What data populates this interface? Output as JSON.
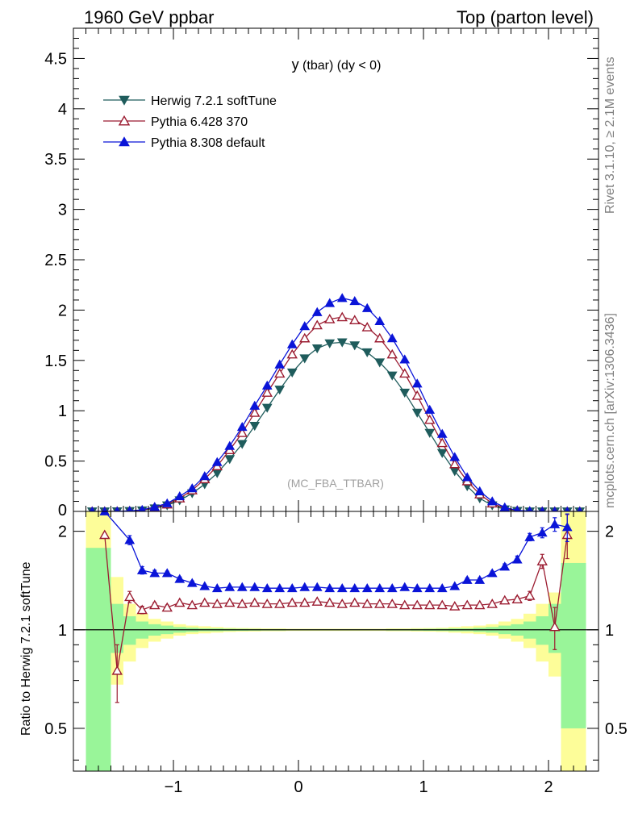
{
  "header": {
    "left": "1960 GeV ppbar",
    "right": "Top (parton level)"
  },
  "side_labels": {
    "rivet": "Rivet 3.1.10, ≥ 2.1M events",
    "source": "mcplots.cern.ch [arXiv:1306.3436]"
  },
  "plot_title": {
    "main": "y",
    "sub": " (tbar) (dy < 0)"
  },
  "watermark": "(MC_FBA_TTBAR)",
  "ratio_ylabel": "Ratio to Herwig 7.2.1 softTune",
  "colors": {
    "herwig": "#1f5c5c",
    "pythia6": "#9b1b30",
    "pythia8": "#0a14d8",
    "band_inner": "#99f599",
    "band_outer": "#fdfd99"
  },
  "chart_data": {
    "type": "line",
    "x": [
      -1.65,
      -1.55,
      -1.45,
      -1.35,
      -1.25,
      -1.15,
      -1.05,
      -0.95,
      -0.85,
      -0.75,
      -0.65,
      -0.55,
      -0.45,
      -0.35,
      -0.25,
      -0.15,
      -0.05,
      0.05,
      0.15,
      0.25,
      0.35,
      0.45,
      0.55,
      0.65,
      0.75,
      0.85,
      0.95,
      1.05,
      1.15,
      1.25,
      1.35,
      1.45,
      1.55,
      1.65,
      1.75,
      1.85,
      1.95,
      2.05,
      2.15,
      2.25
    ],
    "main_panel": {
      "xlim": [
        -1.8,
        2.4
      ],
      "ylim": [
        0,
        4.8
      ],
      "yticks": [
        0.5,
        1,
        1.5,
        2,
        2.5,
        3,
        3.5,
        4,
        4.5
      ],
      "ytick_labels": [
        "0.5",
        "1",
        "1.5",
        "2",
        "2.5",
        "3",
        "3.5",
        "4",
        "4.5"
      ],
      "legend_position": "top-left",
      "series": [
        {
          "name": "Herwig 7.2.1 softTune",
          "marker": "triangle-down-filled",
          "values": [
            0.0,
            0.0,
            0.001,
            0.004,
            0.01,
            0.03,
            0.06,
            0.11,
            0.18,
            0.27,
            0.38,
            0.52,
            0.67,
            0.85,
            1.03,
            1.21,
            1.38,
            1.52,
            1.62,
            1.67,
            1.68,
            1.65,
            1.58,
            1.48,
            1.35,
            1.18,
            0.98,
            0.78,
            0.58,
            0.4,
            0.25,
            0.13,
            0.06,
            0.02,
            0.005,
            0.0,
            0.0,
            0.0,
            0.0,
            0.0
          ]
        },
        {
          "name": "Pythia 6.428 370",
          "marker": "triangle-up-open",
          "values": [
            0.0,
            0.0,
            0.001,
            0.005,
            0.01,
            0.04,
            0.07,
            0.13,
            0.21,
            0.32,
            0.45,
            0.61,
            0.78,
            0.98,
            1.18,
            1.37,
            1.56,
            1.72,
            1.85,
            1.91,
            1.93,
            1.9,
            1.83,
            1.72,
            1.56,
            1.37,
            1.15,
            0.91,
            0.68,
            0.47,
            0.3,
            0.17,
            0.08,
            0.03,
            0.01,
            0.0,
            0.0,
            0.0,
            0.0,
            0.0
          ]
        },
        {
          "name": "Pythia 8.308 default",
          "marker": "triangle-up-filled",
          "values": [
            0.0,
            0.0,
            0.001,
            0.006,
            0.015,
            0.045,
            0.08,
            0.15,
            0.23,
            0.35,
            0.49,
            0.65,
            0.84,
            1.05,
            1.25,
            1.46,
            1.66,
            1.84,
            1.98,
            2.07,
            2.12,
            2.09,
            2.02,
            1.89,
            1.72,
            1.51,
            1.27,
            1.01,
            0.77,
            0.54,
            0.34,
            0.2,
            0.1,
            0.04,
            0.01,
            0.004,
            0.0,
            0.0,
            0.0,
            0.0
          ]
        }
      ]
    },
    "ratio_panel": {
      "ylabel": "Ratio to Herwig 7.2.1 softTune",
      "ylim": [
        0.37,
        2.3
      ],
      "yticks": [
        0.5,
        1,
        2
      ],
      "ytick_labels": [
        "0.5",
        "1",
        "2"
      ],
      "xticks": [
        -1,
        0,
        1,
        2
      ],
      "xtick_labels": [
        "−1",
        "0",
        "1",
        "2"
      ],
      "band_inner": [
        [
          0.3,
          1.78
        ],
        [
          0.3,
          1.78
        ],
        [
          0.85,
          1.2
        ],
        [
          0.9,
          1.1
        ],
        [
          0.94,
          1.06
        ],
        [
          0.96,
          1.04
        ],
        [
          0.97,
          1.03
        ],
        [
          0.98,
          1.02
        ],
        [
          0.985,
          1.015
        ],
        [
          0.99,
          1.01
        ],
        [
          0.99,
          1.01
        ],
        [
          0.992,
          1.008
        ],
        [
          0.993,
          1.007
        ],
        [
          0.994,
          1.006
        ],
        [
          0.995,
          1.005
        ],
        [
          0.995,
          1.005
        ],
        [
          0.996,
          1.004
        ],
        [
          0.996,
          1.004
        ],
        [
          0.996,
          1.004
        ],
        [
          0.996,
          1.004
        ],
        [
          0.996,
          1.004
        ],
        [
          0.996,
          1.004
        ],
        [
          0.996,
          1.004
        ],
        [
          0.996,
          1.004
        ],
        [
          0.995,
          1.005
        ],
        [
          0.995,
          1.005
        ],
        [
          0.994,
          1.006
        ],
        [
          0.993,
          1.007
        ],
        [
          0.992,
          1.008
        ],
        [
          0.99,
          1.01
        ],
        [
          0.99,
          1.01
        ],
        [
          0.985,
          1.015
        ],
        [
          0.98,
          1.02
        ],
        [
          0.97,
          1.03
        ],
        [
          0.96,
          1.04
        ],
        [
          0.94,
          1.06
        ],
        [
          0.9,
          1.1
        ],
        [
          0.85,
          1.2
        ],
        [
          0.5,
          1.6
        ],
        [
          0.5,
          1.6
        ]
      ],
      "band_outer": [
        [
          0.3,
          2.3
        ],
        [
          0.3,
          2.3
        ],
        [
          0.68,
          1.45
        ],
        [
          0.8,
          1.2
        ],
        [
          0.88,
          1.12
        ],
        [
          0.92,
          1.08
        ],
        [
          0.94,
          1.06
        ],
        [
          0.96,
          1.04
        ],
        [
          0.97,
          1.03
        ],
        [
          0.975,
          1.025
        ],
        [
          0.98,
          1.02
        ],
        [
          0.985,
          1.015
        ],
        [
          0.987,
          1.013
        ],
        [
          0.988,
          1.012
        ],
        [
          0.99,
          1.01
        ],
        [
          0.99,
          1.01
        ],
        [
          0.992,
          1.008
        ],
        [
          0.992,
          1.008
        ],
        [
          0.992,
          1.008
        ],
        [
          0.992,
          1.008
        ],
        [
          0.992,
          1.008
        ],
        [
          0.992,
          1.008
        ],
        [
          0.992,
          1.008
        ],
        [
          0.992,
          1.008
        ],
        [
          0.99,
          1.01
        ],
        [
          0.99,
          1.01
        ],
        [
          0.988,
          1.012
        ],
        [
          0.987,
          1.013
        ],
        [
          0.985,
          1.015
        ],
        [
          0.98,
          1.02
        ],
        [
          0.975,
          1.025
        ],
        [
          0.97,
          1.03
        ],
        [
          0.96,
          1.04
        ],
        [
          0.94,
          1.06
        ],
        [
          0.92,
          1.08
        ],
        [
          0.88,
          1.12
        ],
        [
          0.8,
          1.2
        ],
        [
          0.72,
          1.3
        ],
        [
          0.35,
          2.3
        ],
        [
          0.35,
          2.3
        ]
      ],
      "series": [
        {
          "name": "Pythia 6.428 370",
          "marker": "triangle-up-open",
          "x": [
            -1.55,
            -1.45,
            -1.35,
            -1.25,
            -1.15,
            -1.05,
            -0.95,
            -0.85,
            -0.75,
            -0.65,
            -0.55,
            -0.45,
            -0.35,
            -0.25,
            -0.15,
            -0.05,
            0.05,
            0.15,
            0.25,
            0.35,
            0.45,
            0.55,
            0.65,
            0.75,
            0.85,
            0.95,
            1.05,
            1.15,
            1.25,
            1.35,
            1.45,
            1.55,
            1.65,
            1.75,
            1.85,
            1.95,
            2.05,
            2.15
          ],
          "values": [
            1.95,
            0.75,
            1.26,
            1.15,
            1.19,
            1.17,
            1.21,
            1.19,
            1.21,
            1.2,
            1.21,
            1.2,
            1.21,
            1.2,
            1.2,
            1.21,
            1.21,
            1.22,
            1.21,
            1.2,
            1.21,
            1.2,
            1.2,
            1.2,
            1.19,
            1.19,
            1.19,
            1.19,
            1.18,
            1.19,
            1.19,
            1.2,
            1.23,
            1.24,
            1.27,
            1.62,
            1.02,
            1.95
          ],
          "err": [
            0.0,
            0.15,
            0.05,
            0.03,
            0.02,
            0.02,
            0.01,
            0.01,
            0.01,
            0.01,
            0.01,
            0.01,
            0.01,
            0.01,
            0.01,
            0.01,
            0.01,
            0.01,
            0.01,
            0.01,
            0.01,
            0.01,
            0.01,
            0.01,
            0.01,
            0.01,
            0.01,
            0.01,
            0.01,
            0.01,
            0.01,
            0.01,
            0.01,
            0.02,
            0.04,
            0.08,
            0.15,
            0.3
          ]
        },
        {
          "name": "Pythia 8.308 default",
          "marker": "triangle-up-filled",
          "x": [
            -1.55,
            -1.35,
            -1.25,
            -1.15,
            -1.05,
            -0.95,
            -0.85,
            -0.75,
            -0.65,
            -0.55,
            -0.45,
            -0.35,
            -0.25,
            -0.15,
            -0.05,
            0.05,
            0.15,
            0.25,
            0.35,
            0.45,
            0.55,
            0.65,
            0.75,
            0.85,
            0.95,
            1.05,
            1.15,
            1.25,
            1.35,
            1.45,
            1.55,
            1.65,
            1.75,
            1.85,
            1.95,
            2.05,
            2.15
          ],
          "values": [
            2.5,
            1.88,
            1.52,
            1.49,
            1.49,
            1.43,
            1.39,
            1.36,
            1.34,
            1.35,
            1.35,
            1.35,
            1.34,
            1.34,
            1.34,
            1.35,
            1.35,
            1.34,
            1.34,
            1.34,
            1.34,
            1.34,
            1.34,
            1.35,
            1.34,
            1.34,
            1.34,
            1.36,
            1.42,
            1.42,
            1.49,
            1.56,
            1.64,
            1.92,
            1.98,
            2.1,
            2.06
          ],
          "err": [
            0.0,
            0.06,
            0.04,
            0.03,
            0.02,
            0.02,
            0.02,
            0.01,
            0.01,
            0.01,
            0.01,
            0.01,
            0.01,
            0.01,
            0.01,
            0.01,
            0.01,
            0.01,
            0.01,
            0.01,
            0.01,
            0.01,
            0.01,
            0.01,
            0.01,
            0.01,
            0.01,
            0.01,
            0.02,
            0.02,
            0.02,
            0.03,
            0.04,
            0.05,
            0.07,
            0.1,
            0.2
          ]
        }
      ]
    }
  }
}
